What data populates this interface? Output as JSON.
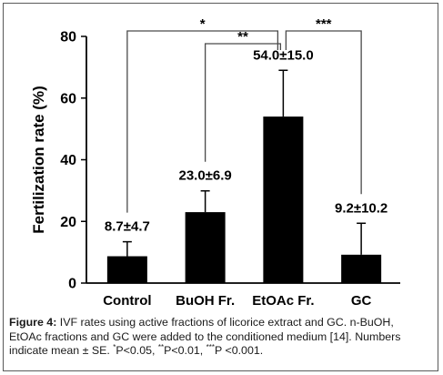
{
  "chart_data": {
    "type": "bar",
    "categories": [
      "Control",
      "BuOH Fr.",
      "EtOAc Fr.",
      "GC"
    ],
    "values": [
      8.7,
      23.0,
      54.0,
      9.2
    ],
    "errors": [
      4.7,
      6.9,
      15.0,
      10.2
    ],
    "data_labels": [
      "8.7±4.7",
      "23.0±6.9",
      "54.0±15.0",
      "9.2±10.2"
    ],
    "ylabel": "Fertilization rate (%)",
    "xlabel": "",
    "ylim": [
      0,
      80
    ],
    "yticks": [
      0,
      20,
      40,
      60,
      80
    ],
    "grid": false,
    "bar_color": "#000000",
    "significance": [
      {
        "from": 2,
        "to": 0,
        "label": "*"
      },
      {
        "from": 2,
        "to": 1,
        "label": "**"
      },
      {
        "from": 2,
        "to": 3,
        "label": "***"
      }
    ]
  },
  "caption": {
    "label": "Figure 4:",
    "line1": "IVF rates using active fractions of licorice extract and GC. n-BuOH,",
    "line2": "EtOAc fractions and GC were added to the conditioned medium [14]. Numbers",
    "line3_a": "indicate mean ± SE.",
    "mark1": "*",
    "line3_b": "P<0.05,",
    "mark2": "**",
    "line3_c": "P<0.01,",
    "mark3": "***",
    "line3_d": "P <0.001."
  }
}
